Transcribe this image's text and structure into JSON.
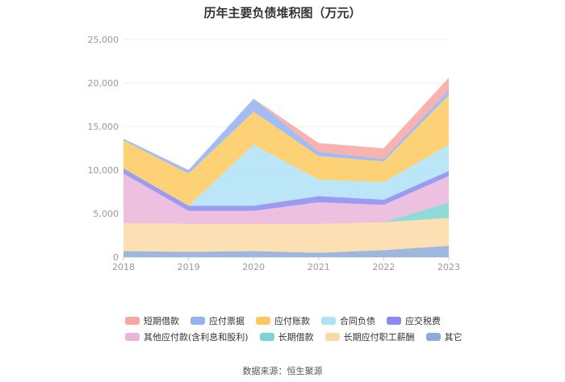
{
  "chart_data": {
    "type": "area",
    "stacked": true,
    "title": "历年主要负债堆积图（万元）",
    "xlabel": "",
    "ylabel": "",
    "x": [
      "2018",
      "2019",
      "2020",
      "2021",
      "2022",
      "2023"
    ],
    "ylim": [
      0,
      25000
    ],
    "yticks": [
      "0",
      "5,000",
      "10,000",
      "15,000",
      "20,000",
      "25,000"
    ],
    "ytick_values": [
      0,
      5000,
      10000,
      15000,
      20000,
      25000
    ],
    "grid": true,
    "legend_position": "bottom",
    "series": [
      {
        "name": "其它",
        "color": "#8eaad8",
        "values": [
          700,
          600,
          700,
          500,
          800,
          1300
        ]
      },
      {
        "name": "长期应付职工薪酬",
        "color": "#fbd9a5",
        "values": [
          3200,
          3200,
          3100,
          3300,
          3200,
          3200
        ]
      },
      {
        "name": "长期借款",
        "color": "#7dd5d3",
        "values": [
          0,
          0,
          0,
          0,
          0,
          1800
        ]
      },
      {
        "name": "其他应付款(含利息和股利)",
        "color": "#ebb5da",
        "values": [
          5700,
          1500,
          1500,
          2500,
          2000,
          3000
        ]
      },
      {
        "name": "应交税费",
        "color": "#8a8af0",
        "values": [
          600,
          600,
          600,
          700,
          600,
          600
        ]
      },
      {
        "name": "合同负债",
        "color": "#aee2f7",
        "values": [
          0,
          0,
          7000,
          1900,
          2000,
          3000
        ]
      },
      {
        "name": "应付账款",
        "color": "#fdc95e",
        "values": [
          3200,
          3700,
          3800,
          2700,
          2400,
          5700
        ]
      },
      {
        "name": "应付票据",
        "color": "#93b2f2",
        "values": [
          200,
          400,
          1500,
          500,
          300,
          600
        ]
      },
      {
        "name": "短期借款",
        "color": "#f8a6a0",
        "values": [
          0,
          0,
          0,
          1000,
          1200,
          1400
        ]
      }
    ]
  },
  "legend": {
    "row1": [
      {
        "label": "短期借款",
        "color": "#f8a6a0"
      },
      {
        "label": "应付票据",
        "color": "#93b2f2"
      },
      {
        "label": "应付账款",
        "color": "#fdc95e"
      },
      {
        "label": "合同负债",
        "color": "#aee2f7"
      },
      {
        "label": "应交税费",
        "color": "#8a8af0"
      }
    ],
    "row2": [
      {
        "label": "其他应付款(含利息和股利)",
        "color": "#ebb5da"
      },
      {
        "label": "长期借款",
        "color": "#7dd5d3"
      },
      {
        "label": "长期应付职工薪酬",
        "color": "#fbd9a5"
      },
      {
        "label": "其它",
        "color": "#8eaad8"
      }
    ]
  },
  "source": "数据来源：恒生聚源"
}
